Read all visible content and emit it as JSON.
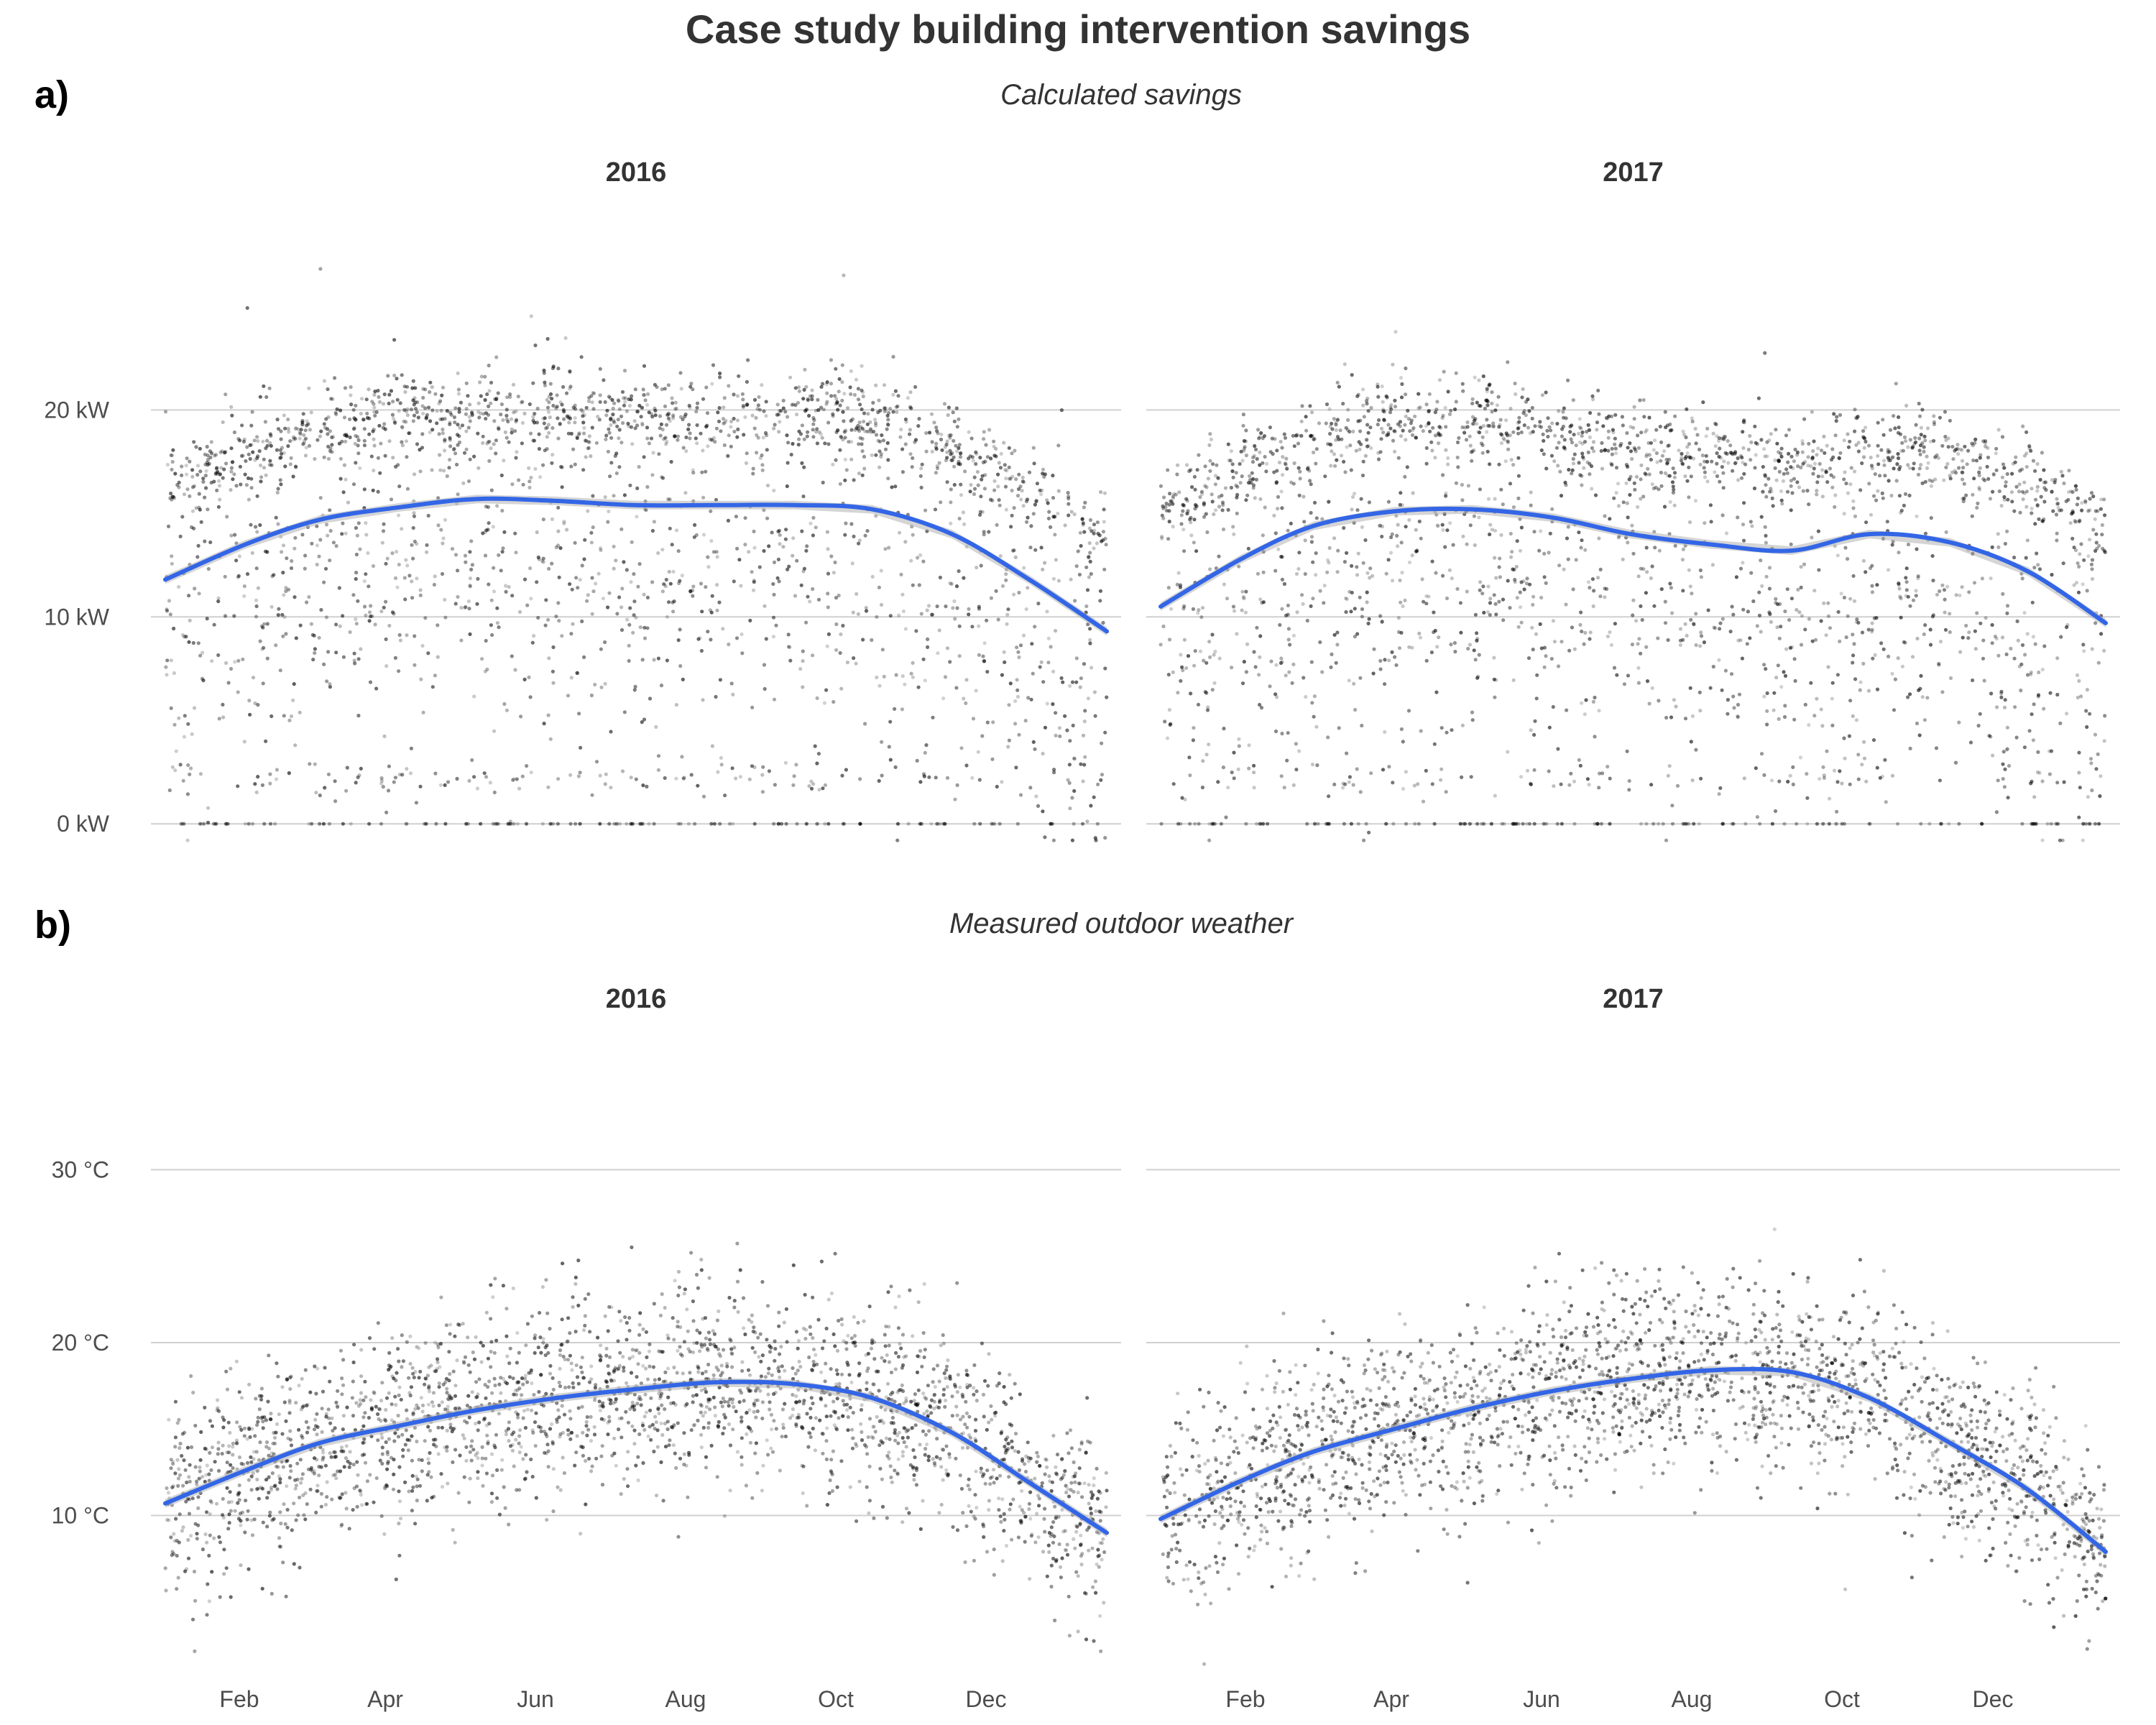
{
  "title": "Case study building intervention savings",
  "x_ticks": [
    "Feb",
    "Apr",
    "Jun",
    "Aug",
    "Oct",
    "Dec"
  ],
  "colors": {
    "points": "#000000",
    "smooth_line": "#3366e6",
    "ribbon": "#b3b3b3",
    "grid": "#d0d0d0",
    "text": "#333333"
  },
  "chart_data": [
    {
      "type": "scatter",
      "tag": "a)",
      "subtitle": "Calculated savings",
      "ylabel": "",
      "xlabel": "",
      "ylim": [
        -1,
        28
      ],
      "y_ticks": [
        0,
        10,
        20
      ],
      "y_tick_labels": [
        "0 kW",
        "10 kW",
        "20 kW"
      ],
      "grid": true,
      "facets": [
        {
          "label": "2016",
          "x_range": [
            "2016-01-01",
            "2016-12-31"
          ],
          "smooth": {
            "name": "loess",
            "x": [
              "2016-01-01",
              "2016-02-01",
              "2016-03-01",
              "2016-04-01",
              "2016-05-01",
              "2016-06-01",
              "2016-07-01",
              "2016-08-01",
              "2016-09-01",
              "2016-10-01",
              "2016-11-01",
              "2016-12-01",
              "2016-12-31"
            ],
            "y": [
              11.8,
              13.5,
              14.7,
              15.3,
              15.7,
              15.6,
              15.4,
              15.4,
              15.4,
              15.2,
              14.0,
              11.8,
              9.3
            ]
          }
        },
        {
          "label": "2017",
          "x_range": [
            "2017-01-01",
            "2017-12-31"
          ],
          "smooth": {
            "name": "loess",
            "x": [
              "2017-01-01",
              "2017-02-01",
              "2017-03-01",
              "2017-04-01",
              "2017-05-01",
              "2017-06-01",
              "2017-07-01",
              "2017-08-01",
              "2017-09-01",
              "2017-10-01",
              "2017-11-01",
              "2017-12-01",
              "2017-12-31"
            ],
            "y": [
              10.5,
              12.8,
              14.4,
              15.1,
              15.2,
              14.8,
              14.0,
              13.5,
              13.2,
              14.0,
              13.6,
              12.2,
              9.7
            ]
          }
        }
      ]
    },
    {
      "type": "scatter",
      "tag": "b)",
      "subtitle": "Measured outdoor weather",
      "ylabel": "",
      "xlabel": "",
      "ylim": [
        1,
        38
      ],
      "y_ticks": [
        10,
        20,
        30
      ],
      "y_tick_labels": [
        "10 °C",
        "20 °C",
        "30 °C"
      ],
      "grid": true,
      "facets": [
        {
          "label": "2016",
          "x_range": [
            "2016-01-01",
            "2016-12-31"
          ],
          "smooth": {
            "name": "loess",
            "x": [
              "2016-01-01",
              "2016-02-01",
              "2016-03-01",
              "2016-04-01",
              "2016-05-01",
              "2016-06-01",
              "2016-07-01",
              "2016-08-01",
              "2016-09-01",
              "2016-10-01",
              "2016-11-01",
              "2016-12-01",
              "2016-12-31"
            ],
            "y": [
              10.7,
              12.6,
              14.2,
              15.2,
              16.1,
              16.8,
              17.3,
              17.7,
              17.6,
              16.8,
              14.8,
              11.9,
              9.0
            ]
          }
        },
        {
          "label": "2017",
          "x_range": [
            "2017-01-01",
            "2017-12-31"
          ],
          "smooth": {
            "name": "loess",
            "x": [
              "2017-01-01",
              "2017-02-01",
              "2017-03-01",
              "2017-04-01",
              "2017-05-01",
              "2017-06-01",
              "2017-07-01",
              "2017-08-01",
              "2017-09-01",
              "2017-10-01",
              "2017-11-01",
              "2017-12-01",
              "2017-12-31"
            ],
            "y": [
              9.8,
              12.0,
              13.7,
              15.0,
              16.2,
              17.2,
              17.9,
              18.4,
              18.3,
              16.8,
              14.2,
              11.5,
              7.9
            ]
          }
        }
      ]
    }
  ]
}
